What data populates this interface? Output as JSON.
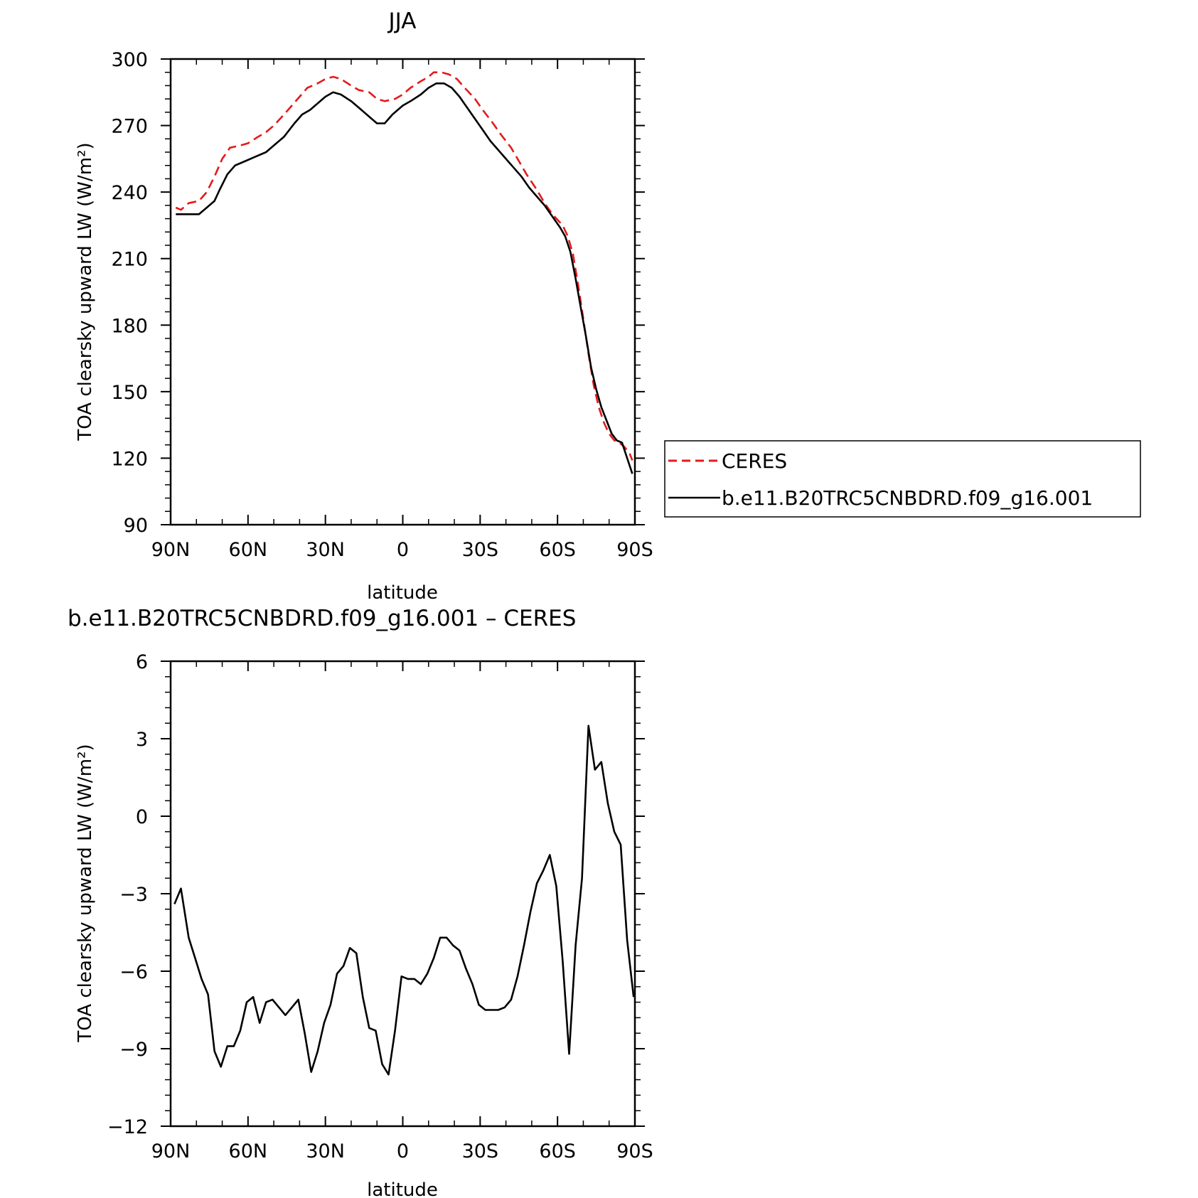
{
  "chart_data": [
    {
      "type": "line",
      "title": "JJA",
      "xlabel": "latitude",
      "ylabel": "TOA clearsky upward LW (W/m²)",
      "xlim": [
        90,
        -90
      ],
      "ylim": [
        90,
        300
      ],
      "xticks": [
        90,
        60,
        30,
        0,
        -30,
        -60,
        -90
      ],
      "xtick_labels": [
        "90N",
        "60N",
        "30N",
        "0",
        "30S",
        "60S",
        "90S"
      ],
      "yticks": [
        90,
        120,
        150,
        180,
        210,
        240,
        270,
        300
      ],
      "ytick_labels": [
        "90",
        "120",
        "150",
        "180",
        "210",
        "240",
        "270",
        "300"
      ],
      "legend_position": "right, outside plot",
      "series": [
        {
          "name": "CERES",
          "color": "#e41a1c",
          "dash": "dashed",
          "points": [
            [
              88,
              233
            ],
            [
              86,
              232
            ],
            [
              83,
              235
            ],
            [
              79,
              236
            ],
            [
              76,
              240
            ],
            [
              73,
              247
            ],
            [
              70,
              255
            ],
            [
              67,
              260
            ],
            [
              63,
              261
            ],
            [
              60,
              262
            ],
            [
              56,
              265
            ],
            [
              53,
              267
            ],
            [
              50,
              270
            ],
            [
              46,
              275
            ],
            [
              43,
              279
            ],
            [
              40,
              283
            ],
            [
              37,
              287
            ],
            [
              33,
              289
            ],
            [
              30,
              291
            ],
            [
              27,
              292
            ],
            [
              24,
              291
            ],
            [
              20,
              288
            ],
            [
              17,
              286
            ],
            [
              13,
              285
            ],
            [
              10,
              282
            ],
            [
              7,
              281
            ],
            [
              3,
              282
            ],
            [
              0,
              284
            ],
            [
              -3,
              287
            ],
            [
              -7,
              290
            ],
            [
              -10,
              292
            ],
            [
              -12,
              294
            ],
            [
              -15,
              294
            ],
            [
              -18,
              293
            ],
            [
              -21,
              291
            ],
            [
              -24,
              287
            ],
            [
              -28,
              282
            ],
            [
              -31,
              277
            ],
            [
              -35,
              271
            ],
            [
              -38,
              266
            ],
            [
              -42,
              260
            ],
            [
              -45,
              254
            ],
            [
              -48,
              248
            ],
            [
              -52,
              241
            ],
            [
              -55,
              235
            ],
            [
              -58,
              230
            ],
            [
              -62,
              225
            ],
            [
              -64,
              220
            ],
            [
              -66,
              212
            ],
            [
              -68,
              198
            ],
            [
              -70,
              183
            ],
            [
              -72,
              167
            ],
            [
              -74,
              153
            ],
            [
              -76,
              143
            ],
            [
              -78,
              136
            ],
            [
              -80,
              131
            ],
            [
              -82,
              128
            ],
            [
              -84,
              127
            ],
            [
              -86,
              125
            ],
            [
              -88,
              122
            ],
            [
              -89,
              119
            ]
          ]
        },
        {
          "name": "b.e11.B20TRC5CNBDRD.f09_g16.001",
          "color": "#000000",
          "dash": "solid",
          "points": [
            [
              88,
              230
            ],
            [
              85,
              230
            ],
            [
              82,
              230
            ],
            [
              79,
              230
            ],
            [
              76,
              233
            ],
            [
              73,
              236
            ],
            [
              71,
              241
            ],
            [
              68,
              248
            ],
            [
              65,
              252
            ],
            [
              61,
              254
            ],
            [
              57,
              256
            ],
            [
              53,
              258
            ],
            [
              50,
              261
            ],
            [
              46,
              265
            ],
            [
              42,
              271
            ],
            [
              39,
              275
            ],
            [
              36,
              277
            ],
            [
              33,
              280
            ],
            [
              30,
              283
            ],
            [
              27,
              285
            ],
            [
              24,
              284
            ],
            [
              20,
              281
            ],
            [
              16,
              277
            ],
            [
              13,
              274
            ],
            [
              10,
              271
            ],
            [
              7,
              271
            ],
            [
              4,
              275
            ],
            [
              0,
              279
            ],
            [
              -3,
              281
            ],
            [
              -7,
              284
            ],
            [
              -10,
              287
            ],
            [
              -13,
              289
            ],
            [
              -16,
              289
            ],
            [
              -19,
              287
            ],
            [
              -22,
              283
            ],
            [
              -25,
              278
            ],
            [
              -28,
              273
            ],
            [
              -31,
              268
            ],
            [
              -34,
              263
            ],
            [
              -37,
              259
            ],
            [
              -40,
              255
            ],
            [
              -43,
              251
            ],
            [
              -46,
              247
            ],
            [
              -49,
              242
            ],
            [
              -52,
              238
            ],
            [
              -55,
              234
            ],
            [
              -58,
              229
            ],
            [
              -61,
              224
            ],
            [
              -63,
              220
            ],
            [
              -65,
              213
            ],
            [
              -67,
              201
            ],
            [
              -69,
              188
            ],
            [
              -71,
              175
            ],
            [
              -73,
              161
            ],
            [
              -75,
              151
            ],
            [
              -77,
              143
            ],
            [
              -79,
              137
            ],
            [
              -81,
              131
            ],
            [
              -83,
              128
            ],
            [
              -85,
              127
            ],
            [
              -87,
              120
            ],
            [
              -89,
              113
            ]
          ]
        }
      ]
    },
    {
      "type": "line",
      "title": "b.e11.B20TRC5CNBDRD.f09_g16.001 – CERES",
      "xlabel": "latitude",
      "ylabel": "TOA clearsky upward LW (W/m²)",
      "xlim": [
        90,
        -90
      ],
      "ylim": [
        -12,
        6
      ],
      "xticks": [
        90,
        60,
        30,
        0,
        -30,
        -60,
        -90
      ],
      "xtick_labels": [
        "90N",
        "60N",
        "30N",
        "0",
        "30S",
        "60S",
        "90S"
      ],
      "yticks": [
        -12,
        -9,
        -6,
        -3,
        0,
        3,
        6
      ],
      "ytick_labels": [
        "−12",
        "−9",
        "−6",
        "−3",
        "0",
        "3",
        "6"
      ],
      "series": [
        {
          "color": "#000000",
          "dash": "solid",
          "points": [
            [
              88.5,
              -3.4
            ],
            [
              86,
              -2.8
            ],
            [
              83,
              -4.7
            ],
            [
              80.5,
              -5.5
            ],
            [
              78,
              -6.3
            ],
            [
              75.5,
              -6.9
            ],
            [
              73,
              -9.1
            ],
            [
              70.5,
              -9.7
            ],
            [
              68,
              -8.9
            ],
            [
              65.5,
              -8.9
            ],
            [
              63,
              -8.3
            ],
            [
              60.5,
              -7.2
            ],
            [
              58,
              -7.0
            ],
            [
              55.5,
              -8.0
            ],
            [
              53,
              -7.2
            ],
            [
              50.5,
              -7.1
            ],
            [
              48,
              -7.4
            ],
            [
              45.5,
              -7.7
            ],
            [
              43,
              -7.4
            ],
            [
              40.5,
              -7.1
            ],
            [
              38,
              -8.4
            ],
            [
              35.5,
              -9.9
            ],
            [
              33,
              -9.1
            ],
            [
              30.5,
              -8.0
            ],
            [
              28,
              -7.3
            ],
            [
              25.5,
              -6.1
            ],
            [
              23,
              -5.8
            ],
            [
              20.5,
              -5.1
            ],
            [
              18,
              -5.3
            ],
            [
              15.5,
              -7.0
            ],
            [
              13,
              -8.2
            ],
            [
              10.5,
              -8.3
            ],
            [
              8,
              -9.6
            ],
            [
              5.5,
              -10.0
            ],
            [
              3,
              -8.3
            ],
            [
              0.5,
              -6.2
            ],
            [
              -2,
              -6.3
            ],
            [
              -4.5,
              -6.3
            ],
            [
              -7,
              -6.5
            ],
            [
              -9.5,
              -6.1
            ],
            [
              -12,
              -5.5
            ],
            [
              -14.5,
              -4.7
            ],
            [
              -17,
              -4.7
            ],
            [
              -19.5,
              -5.0
            ],
            [
              -22,
              -5.2
            ],
            [
              -24.5,
              -5.9
            ],
            [
              -27,
              -6.5
            ],
            [
              -29.5,
              -7.3
            ],
            [
              -32,
              -7.5
            ],
            [
              -34.5,
              -7.5
            ],
            [
              -37,
              -7.5
            ],
            [
              -39.5,
              -7.4
            ],
            [
              -42,
              -7.1
            ],
            [
              -44.5,
              -6.2
            ],
            [
              -47,
              -5.0
            ],
            [
              -49.5,
              -3.7
            ],
            [
              -52,
              -2.6
            ],
            [
              -54.5,
              -2.1
            ],
            [
              -57,
              -1.5
            ],
            [
              -59.5,
              -2.7
            ],
            [
              -62,
              -5.6
            ],
            [
              -64.5,
              -9.2
            ],
            [
              -67,
              -5.0
            ],
            [
              -69.5,
              -2.4
            ],
            [
              -72,
              3.5
            ],
            [
              -74.5,
              1.8
            ],
            [
              -77,
              2.1
            ],
            [
              -79.5,
              0.5
            ],
            [
              -82,
              -0.6
            ],
            [
              -84.5,
              -1.1
            ],
            [
              -87,
              -4.8
            ],
            [
              -89.5,
              -7.0
            ]
          ]
        }
      ]
    }
  ]
}
